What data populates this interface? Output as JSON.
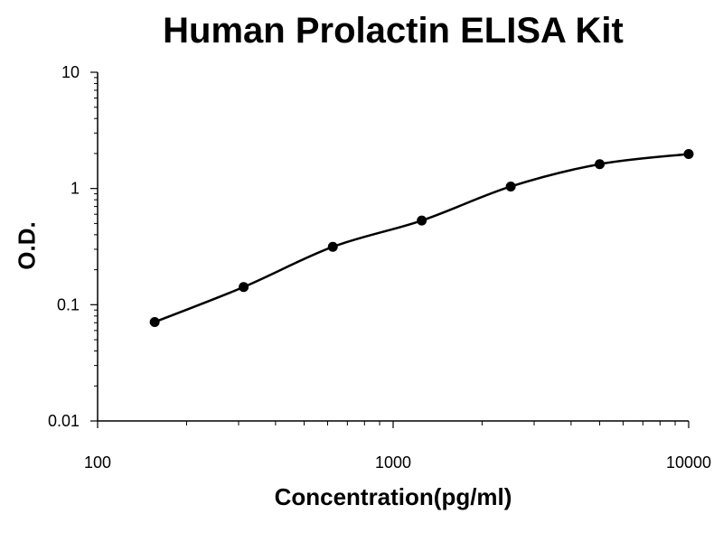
{
  "chart_data": {
    "type": "scatter",
    "title": "Human Prolactin ELISA Kit",
    "xlabel": "Concentration(pg/ml)",
    "ylabel": "O.D.",
    "xscale": "log",
    "yscale": "log",
    "xlim": [
      100,
      10000
    ],
    "ylim": [
      0.01,
      10
    ],
    "x_ticks": [
      "100",
      "1000",
      "10000"
    ],
    "y_ticks": [
      "0.01",
      "0.1",
      "1",
      "10"
    ],
    "grid": false,
    "legend": "none",
    "fit_curve": true,
    "points": [
      {
        "x": 156,
        "y": 0.071
      },
      {
        "x": 312,
        "y": 0.142
      },
      {
        "x": 625,
        "y": 0.315
      },
      {
        "x": 1250,
        "y": 0.53
      },
      {
        "x": 2500,
        "y": 1.04
      },
      {
        "x": 5000,
        "y": 1.62
      },
      {
        "x": 10000,
        "y": 1.98
      }
    ],
    "colors": {
      "point": "#000000",
      "line": "#000000",
      "axis": "#000000"
    }
  }
}
